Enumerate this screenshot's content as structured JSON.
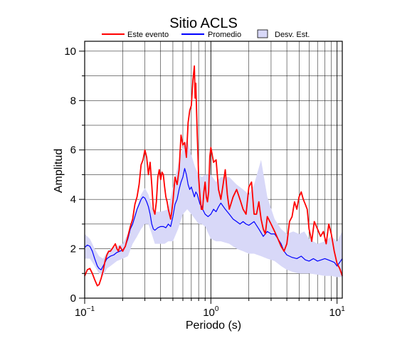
{
  "chart_data": {
    "type": "line",
    "title": "Sitio ACLS",
    "xlabel": "Periodo (s)",
    "ylabel": "Amplitud",
    "x_scale": "log",
    "xlim": [
      0.1,
      11
    ],
    "ylim": [
      0,
      10.4
    ],
    "x_ticks": [
      {
        "value": 0.1,
        "base": "10",
        "exp": "−1"
      },
      {
        "value": 1,
        "base": "10",
        "exp": "0"
      },
      {
        "value": 10,
        "base": "10",
        "exp": "1"
      }
    ],
    "y_ticks": [
      {
        "value": 0,
        "label": "0"
      },
      {
        "value": 2,
        "label": "2"
      },
      {
        "value": 4,
        "label": "4"
      },
      {
        "value": 6,
        "label": "6"
      },
      {
        "value": 8,
        "label": "8"
      },
      {
        "value": 10,
        "label": "10"
      }
    ],
    "grid": true,
    "legend": {
      "placement": "top",
      "items": [
        {
          "label": "Este evento",
          "kind": "line",
          "color": "#ff0000"
        },
        {
          "label": "Promedio",
          "kind": "line",
          "color": "#0000ff"
        },
        {
          "label": "Desv. Est.",
          "kind": "box",
          "color": "#d8d8f8"
        }
      ]
    },
    "series": [
      {
        "name": "Este evento",
        "color": "#ff0000",
        "x": [
          0.1,
          0.105,
          0.11,
          0.115,
          0.12,
          0.126,
          0.13,
          0.135,
          0.14,
          0.145,
          0.15,
          0.155,
          0.16,
          0.165,
          0.17,
          0.175,
          0.18,
          0.185,
          0.19,
          0.2,
          0.21,
          0.22,
          0.23,
          0.24,
          0.25,
          0.26,
          0.27,
          0.28,
          0.29,
          0.3,
          0.31,
          0.32,
          0.33,
          0.34,
          0.35,
          0.36,
          0.37,
          0.38,
          0.39,
          0.4,
          0.41,
          0.42,
          0.43,
          0.44,
          0.45,
          0.46,
          0.47,
          0.48,
          0.49,
          0.5,
          0.52,
          0.54,
          0.56,
          0.58,
          0.6,
          0.62,
          0.64,
          0.66,
          0.68,
          0.7,
          0.72,
          0.74,
          0.75,
          0.76,
          0.77,
          0.78,
          0.79,
          0.8,
          0.82,
          0.84,
          0.86,
          0.88,
          0.9,
          0.92,
          0.94,
          0.96,
          0.98,
          1.0,
          1.05,
          1.1,
          1.15,
          1.2,
          1.25,
          1.3,
          1.35,
          1.4,
          1.5,
          1.6,
          1.7,
          1.8,
          1.9,
          2.0,
          2.1,
          2.2,
          2.3,
          2.4,
          2.5,
          2.6,
          2.7,
          2.8,
          3.0,
          3.2,
          3.4,
          3.6,
          3.8,
          4.0,
          4.2,
          4.4,
          4.6,
          4.8,
          5.0,
          5.2,
          5.4,
          5.6,
          5.8,
          6.0,
          6.3,
          6.6,
          7.0,
          7.4,
          7.8,
          8.2,
          8.6,
          9.0,
          9.5,
          10.0,
          10.5,
          11.0
        ],
        "values": [
          0.9,
          1.15,
          1.2,
          1.0,
          0.75,
          0.5,
          0.55,
          0.8,
          1.1,
          1.5,
          1.75,
          1.9,
          1.9,
          2.0,
          2.1,
          2.2,
          2.0,
          1.9,
          2.1,
          1.9,
          2.1,
          2.5,
          2.9,
          3.2,
          3.8,
          4.1,
          4.6,
          5.4,
          5.6,
          6.0,
          5.7,
          5.0,
          5.5,
          4.6,
          3.6,
          3.4,
          3.9,
          4.9,
          5.2,
          4.8,
          5.1,
          5.0,
          4.5,
          4.1,
          3.9,
          3.6,
          3.4,
          3.2,
          3.5,
          3.9,
          4.9,
          4.6,
          5.2,
          6.6,
          6.2,
          6.3,
          5.7,
          7.1,
          7.6,
          7.8,
          8.8,
          9.4,
          8.1,
          8.7,
          7.6,
          6.6,
          5.8,
          4.9,
          4.1,
          3.6,
          3.6,
          4.3,
          4.7,
          4.1,
          3.9,
          4.3,
          5.7,
          6.1,
          5.5,
          5.6,
          4.4,
          4.0,
          4.6,
          5.2,
          4.2,
          3.6,
          4.1,
          4.4,
          4.0,
          3.6,
          3.4,
          4.5,
          4.7,
          3.4,
          3.4,
          3.9,
          3.2,
          2.8,
          2.6,
          3.3,
          3.0,
          2.7,
          2.4,
          2.1,
          1.9,
          2.2,
          3.1,
          3.3,
          3.9,
          3.6,
          4.1,
          4.3,
          4.0,
          3.8,
          3.6,
          2.8,
          2.3,
          3.1,
          2.8,
          2.5,
          2.7,
          2.2,
          3.0,
          2.6,
          1.9,
          1.4,
          1.2,
          0.9
        ]
      },
      {
        "name": "Promedio",
        "color": "#0000ff",
        "x": [
          0.1,
          0.105,
          0.11,
          0.115,
          0.12,
          0.126,
          0.13,
          0.135,
          0.14,
          0.15,
          0.16,
          0.17,
          0.18,
          0.19,
          0.2,
          0.21,
          0.22,
          0.23,
          0.24,
          0.25,
          0.26,
          0.27,
          0.28,
          0.29,
          0.3,
          0.31,
          0.32,
          0.33,
          0.34,
          0.35,
          0.36,
          0.37,
          0.38,
          0.4,
          0.42,
          0.44,
          0.46,
          0.48,
          0.5,
          0.52,
          0.54,
          0.56,
          0.58,
          0.6,
          0.62,
          0.64,
          0.66,
          0.68,
          0.7,
          0.72,
          0.74,
          0.76,
          0.78,
          0.8,
          0.82,
          0.84,
          0.86,
          0.88,
          0.9,
          0.95,
          1.0,
          1.05,
          1.1,
          1.15,
          1.2,
          1.3,
          1.4,
          1.5,
          1.6,
          1.7,
          1.8,
          1.9,
          2.0,
          2.2,
          2.4,
          2.6,
          2.8,
          3.0,
          3.2,
          3.4,
          3.6,
          3.8,
          4.0,
          4.4,
          4.8,
          5.2,
          5.6,
          6.0,
          6.5,
          7.0,
          7.5,
          8.0,
          8.5,
          9.0,
          9.5,
          10.0,
          10.5,
          11.0
        ],
        "values": [
          2.05,
          2.15,
          2.1,
          1.9,
          1.6,
          1.3,
          1.2,
          1.15,
          1.3,
          1.6,
          1.7,
          1.75,
          1.85,
          1.9,
          1.95,
          2.1,
          2.4,
          2.8,
          3.0,
          3.3,
          3.6,
          3.8,
          4.0,
          4.1,
          4.05,
          3.9,
          3.7,
          3.4,
          3.0,
          2.8,
          2.75,
          2.8,
          2.85,
          2.9,
          2.9,
          2.85,
          3.0,
          2.9,
          3.3,
          3.8,
          4.0,
          4.4,
          4.7,
          4.9,
          5.25,
          5.0,
          4.6,
          4.4,
          4.5,
          4.3,
          4.1,
          4.3,
          4.2,
          4.0,
          3.8,
          3.75,
          3.6,
          3.5,
          3.4,
          3.3,
          3.4,
          3.6,
          3.5,
          3.7,
          3.85,
          3.6,
          3.4,
          3.2,
          3.1,
          3.0,
          3.1,
          3.0,
          2.95,
          3.1,
          2.8,
          2.5,
          2.7,
          2.6,
          2.6,
          2.4,
          2.2,
          1.9,
          1.75,
          1.65,
          1.6,
          1.7,
          1.55,
          1.5,
          1.6,
          1.5,
          1.55,
          1.6,
          1.55,
          1.5,
          1.45,
          1.3,
          1.45,
          1.6
        ]
      }
    ],
    "band": {
      "name": "Desv. Est.",
      "color": "#d8d8f8",
      "x": [
        0.1,
        0.11,
        0.12,
        0.13,
        0.14,
        0.15,
        0.16,
        0.18,
        0.2,
        0.22,
        0.24,
        0.26,
        0.28,
        0.3,
        0.32,
        0.34,
        0.36,
        0.38,
        0.4,
        0.43,
        0.46,
        0.5,
        0.55,
        0.6,
        0.65,
        0.7,
        0.75,
        0.8,
        0.85,
        0.9,
        1.0,
        1.1,
        1.2,
        1.4,
        1.6,
        1.8,
        2.0,
        2.2,
        2.5,
        2.8,
        3.2,
        3.6,
        4.0,
        4.5,
        5.0,
        5.5,
        6.0,
        7.0,
        8.0,
        9.0,
        10.0,
        11.0
      ],
      "upper": [
        2.6,
        2.4,
        2.0,
        1.7,
        1.6,
        1.85,
        2.0,
        2.1,
        2.2,
        2.6,
        3.2,
        3.7,
        4.2,
        4.45,
        4.2,
        3.7,
        3.5,
        3.5,
        3.5,
        3.55,
        3.6,
        4.5,
        5.4,
        6.1,
        6.4,
        5.8,
        5.3,
        5.0,
        4.9,
        5.0,
        5.0,
        4.7,
        4.9,
        4.9,
        4.6,
        4.4,
        4.2,
        4.6,
        5.6,
        4.1,
        3.2,
        2.8,
        2.6,
        2.7,
        2.6,
        2.7,
        2.4,
        2.2,
        2.3,
        2.5,
        2.3,
        2.7
      ],
      "lower": [
        1.6,
        1.6,
        1.3,
        1.0,
        0.9,
        1.2,
        1.3,
        1.5,
        1.6,
        1.7,
        2.2,
        2.5,
        2.8,
        3.0,
        3.0,
        2.6,
        2.2,
        2.2,
        2.2,
        2.2,
        2.3,
        2.3,
        2.8,
        3.4,
        3.6,
        3.4,
        3.2,
        3.0,
        3.0,
        2.9,
        2.4,
        2.3,
        2.3,
        2.2,
        2.0,
        1.9,
        1.8,
        1.8,
        1.7,
        1.6,
        1.5,
        1.3,
        1.15,
        1.05,
        1.0,
        1.0,
        1.0,
        0.95,
        0.9,
        0.9,
        0.85,
        0.85
      ]
    }
  }
}
